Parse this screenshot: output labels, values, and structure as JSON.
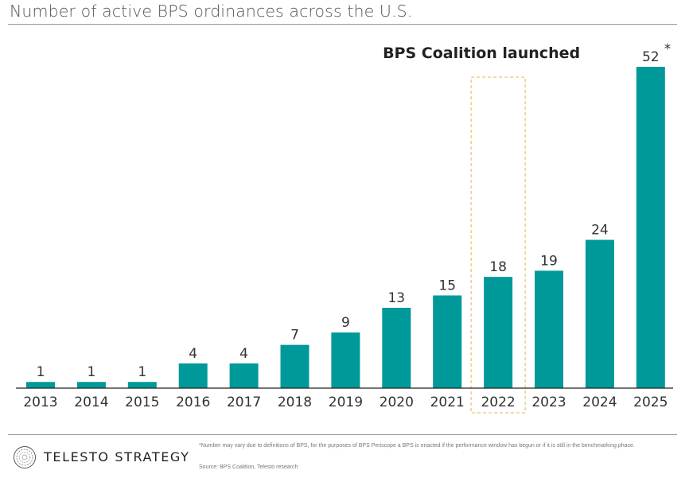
{
  "title": "Number of active BPS ordinances across the U.S.",
  "chart_data": {
    "type": "bar",
    "categories": [
      "2013",
      "2014",
      "2015",
      "2016",
      "2017",
      "2018",
      "2019",
      "2020",
      "2021",
      "2022",
      "2023",
      "2024",
      "2025"
    ],
    "values": [
      1,
      1,
      1,
      4,
      4,
      7,
      9,
      13,
      15,
      18,
      19,
      24,
      52
    ],
    "data_labels": [
      "1",
      "1",
      "1",
      "4",
      "4",
      "7",
      "9",
      "13",
      "15",
      "18",
      "19",
      "24",
      "52"
    ],
    "asterisk_on": "2025",
    "asterisk": "*",
    "bar_color": "#009999",
    "highlight_category": "2022",
    "highlight_color": "#e8b54a",
    "annotation": "BPS Coalition launched",
    "ylim": [
      0,
      52
    ],
    "grid": false,
    "xlabel": "",
    "ylabel": ""
  },
  "footer": {
    "brand": "TELESTO STRATEGY",
    "logo_icon": "telesto-ring-logo",
    "footnote": "*Number may vary due to definitions of BPS, for the purposes of BPS Periscope a BPS is enacted if the performance window has begun or if it is still in the benchmarking phase.",
    "source": "Source: BPS Coalition, Telesto research"
  }
}
